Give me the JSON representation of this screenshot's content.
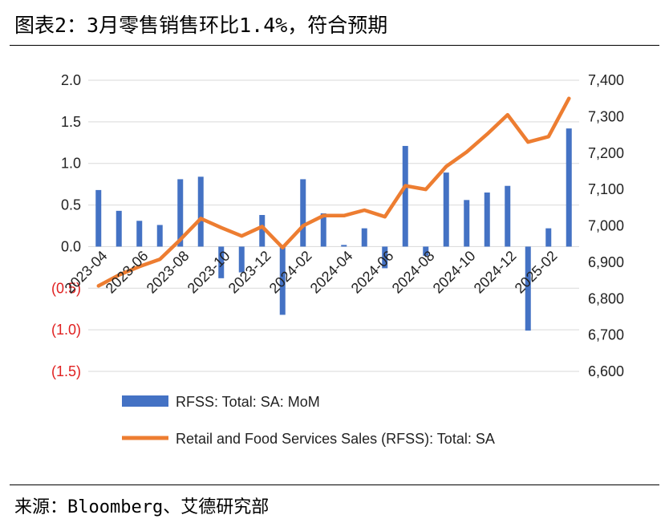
{
  "header": {
    "title": "图表2：3月零售销售环比1.4%，符合预期"
  },
  "footer": {
    "source": "来源：Bloomberg、艾德研究部"
  },
  "colors": {
    "bar": "#4472C4",
    "line": "#ED7D31",
    "negative_tick": "#E02020",
    "grid": "#D9D9D9"
  },
  "chart_data": {
    "type": "bar",
    "categories": [
      "2023-04",
      "2023-05",
      "2023-06",
      "2023-07",
      "2023-08",
      "2023-09",
      "2023-10",
      "2023-11",
      "2023-12",
      "2024-01",
      "2024-02",
      "2024-03",
      "2024-04",
      "2024-05",
      "2024-06",
      "2024-07",
      "2024-08",
      "2024-09",
      "2024-10",
      "2024-11",
      "2024-12",
      "2025-01",
      "2025-02",
      "2025-03"
    ],
    "x_tick_labels": [
      "2023-04",
      "2023-06",
      "2023-08",
      "2023-10",
      "2023-12",
      "2024-02",
      "2024-04",
      "2024-06",
      "2024-08",
      "2024-10",
      "2024-12",
      "2025-02"
    ],
    "series": [
      {
        "name": "RFSS: Total: SA: MoM",
        "type": "bar",
        "axis": "left",
        "values": [
          0.68,
          0.43,
          0.31,
          0.26,
          0.81,
          0.84,
          -0.38,
          -0.31,
          0.38,
          -0.82,
          0.81,
          0.4,
          0.02,
          0.22,
          -0.26,
          1.21,
          -0.11,
          0.89,
          0.56,
          0.65,
          0.73,
          -1.01,
          0.22,
          1.42
        ]
      },
      {
        "name": "Retail and Food Services Sales (RFSS): Total: SA",
        "type": "line",
        "axis": "right",
        "values": [
          6835,
          6865,
          6888,
          6908,
          6962,
          7020,
          6995,
          6972,
          6998,
          6940,
          7000,
          7028,
          7028,
          7043,
          7025,
          7110,
          7100,
          7163,
          7203,
          7252,
          7305,
          7230,
          7245,
          7350
        ]
      }
    ],
    "y_left": {
      "ylim": [
        -1.5,
        2.0
      ],
      "ticks": [
        "(1.5)",
        "(1.0)",
        "(0.5)",
        "0.0",
        "0.5",
        "1.0",
        "1.5",
        "2.0"
      ],
      "tick_values": [
        -1.5,
        -1.0,
        -0.5,
        0.0,
        0.5,
        1.0,
        1.5,
        2.0
      ]
    },
    "y_right": {
      "ylim": [
        6600,
        7400
      ],
      "ticks": [
        "6,600",
        "6,700",
        "6,800",
        "6,900",
        "7,000",
        "7,100",
        "7,200",
        "7,300",
        "7,400"
      ],
      "tick_values": [
        6600,
        6700,
        6800,
        6900,
        7000,
        7100,
        7200,
        7300,
        7400
      ]
    },
    "grid": true,
    "legend": "bottom"
  }
}
